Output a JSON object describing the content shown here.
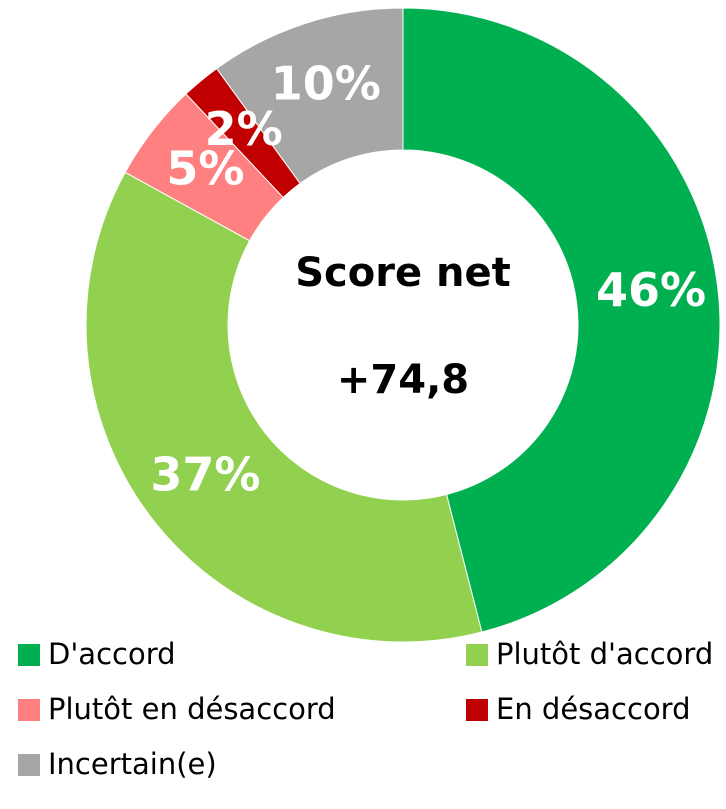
{
  "chart_data": {
    "type": "donut",
    "categories": [
      "D'accord",
      "Plutôt d'accord",
      "Plutôt en désaccord",
      "En désaccord",
      "Incertain(e)"
    ],
    "values": [
      46,
      37,
      5,
      2,
      10
    ],
    "value_labels": [
      "46%",
      "37%",
      "5%",
      "2%",
      "10%"
    ],
    "colors": [
      "#00b050",
      "#92d050",
      "#ff8080",
      "#c00000",
      "#a6a6a6"
    ],
    "center_title": "Score net",
    "center_value": "+74,8",
    "legend": "bottom"
  }
}
